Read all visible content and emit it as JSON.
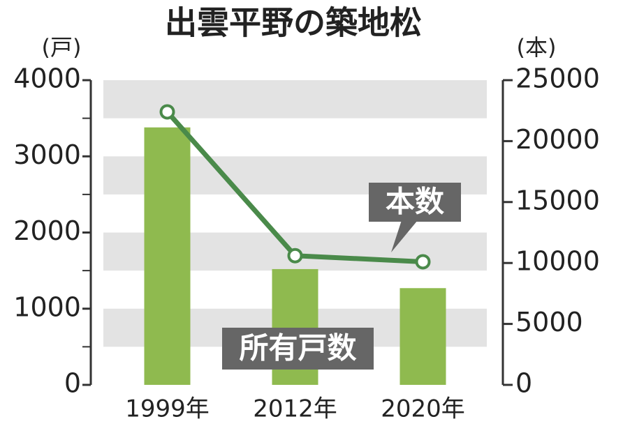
{
  "chart_data": {
    "type": "bar-line",
    "title": "出雲平野の築地松",
    "y_label": "(戸)",
    "y2_label": "(本)",
    "categories": [
      "1999年",
      "2012年",
      "2020年"
    ],
    "series": [
      {
        "name": "所有戸数",
        "type": "bar",
        "color": "#8fba4f",
        "values": [
          3380,
          1520,
          1270
        ]
      },
      {
        "name": "本数",
        "type": "line",
        "axis": "y2",
        "color": "#4a8a4a",
        "values": [
          22400,
          10600,
          10100
        ]
      }
    ],
    "ylim": [
      0,
      4000
    ],
    "yticks": [
      0,
      1000,
      2000,
      3000,
      4000
    ],
    "y2lim": [
      0,
      25000
    ],
    "y2ticks": [
      0,
      5000,
      10000,
      15000,
      20000,
      25000
    ],
    "grid": true
  }
}
